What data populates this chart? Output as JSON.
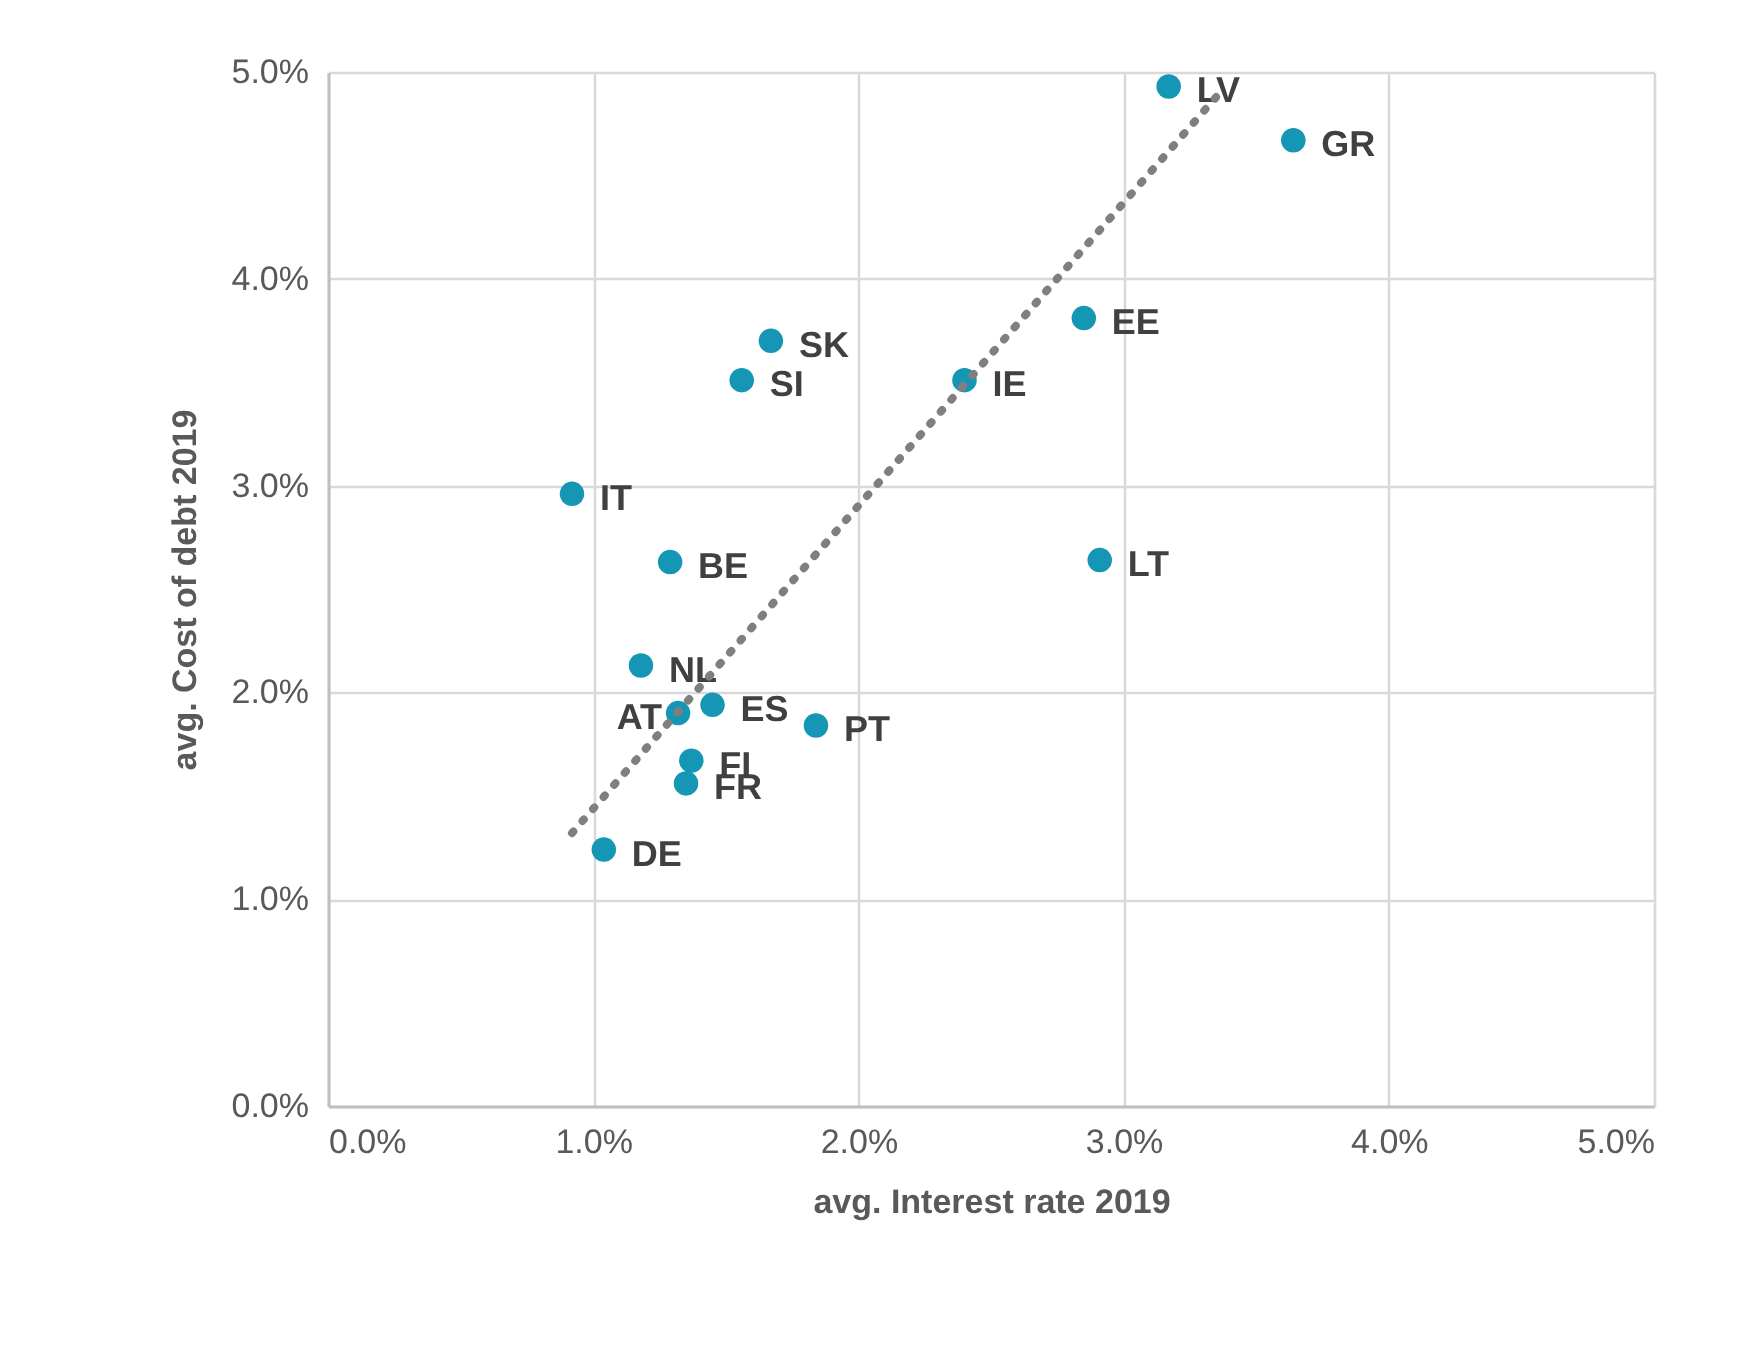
{
  "chart_data": {
    "type": "scatter",
    "xlabel": "avg. Interest rate 2019",
    "ylabel": "avg. Cost of debt 2019",
    "xlim": [
      0,
      5
    ],
    "ylim": [
      0,
      5
    ],
    "xticks": [
      {
        "value": 0,
        "label": "0.0%"
      },
      {
        "value": 1,
        "label": "1.0%"
      },
      {
        "value": 2,
        "label": "2.0%"
      },
      {
        "value": 3,
        "label": "3.0%"
      },
      {
        "value": 4,
        "label": "4.0%"
      },
      {
        "value": 5,
        "label": "5.0%"
      }
    ],
    "yticks": [
      {
        "value": 0,
        "label": "0.0%"
      },
      {
        "value": 1,
        "label": "1.0%"
      },
      {
        "value": 2,
        "label": "2.0%"
      },
      {
        "value": 3,
        "label": "3.0%"
      },
      {
        "value": 4,
        "label": "4.0%"
      },
      {
        "value": 5,
        "label": "5.0%"
      }
    ],
    "grid": true,
    "series": [
      {
        "marker": "circle",
        "color": "#1496b4",
        "x": [
          3.17,
          3.64,
          2.85,
          1.67,
          1.56,
          2.4,
          0.92,
          1.29,
          2.91,
          1.18,
          1.45,
          1.32,
          1.84,
          1.37,
          1.35,
          1.04
        ],
        "values": [
          4.93,
          4.67,
          3.81,
          3.7,
          3.51,
          3.51,
          2.96,
          2.63,
          2.64,
          2.13,
          1.94,
          1.9,
          1.84,
          1.67,
          1.56,
          1.24
        ],
        "value_labels": [
          "LV",
          "GR",
          "EE",
          "SK",
          "SI",
          "IE",
          "IT",
          "BE",
          "LT",
          "NL",
          "ES",
          "AT",
          "PT",
          "FI",
          "FR",
          "DE"
        ]
      },
      {
        "type": "line",
        "marker": "none",
        "color": "#7f7f7f",
        "line_style": "dotted",
        "x": [
          0.92,
          3.37
        ],
        "values": [
          1.32,
          4.91
        ]
      }
    ]
  }
}
